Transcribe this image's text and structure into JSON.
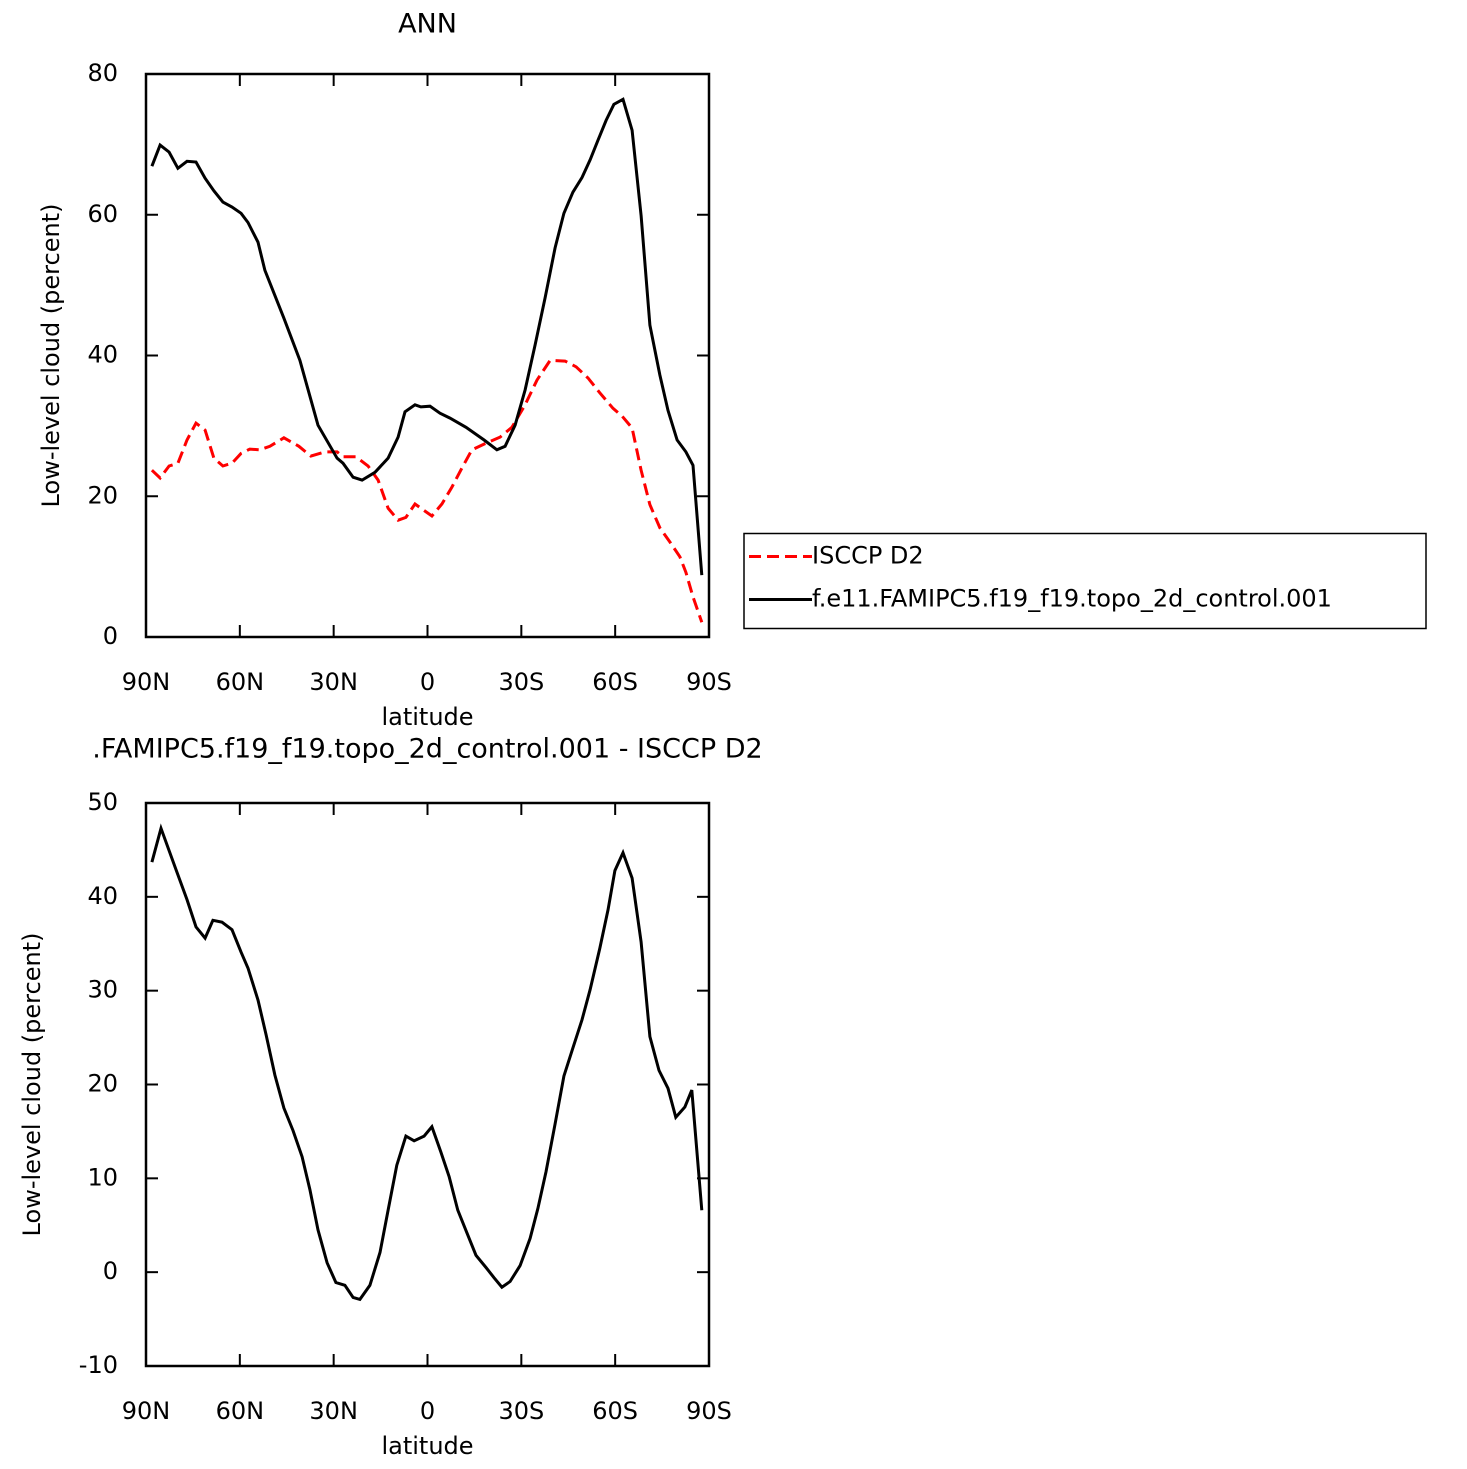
{
  "chart_data": [
    {
      "type": "line",
      "title": "ANN",
      "xlabel": "latitude",
      "ylabel": "Low-level cloud (percent)",
      "xlim": [
        90,
        -90
      ],
      "xticks": [
        {
          "value": 90,
          "label": "90N"
        },
        {
          "value": 60,
          "label": "60N"
        },
        {
          "value": 30,
          "label": "30N"
        },
        0,
        {
          "value": -30,
          "label": "30S"
        },
        {
          "value": -60,
          "label": "60S"
        },
        {
          "value": -90,
          "label": "90S"
        }
      ],
      "ylim": [
        0,
        80
      ],
      "yticks": [
        0,
        20,
        40,
        60,
        80
      ],
      "legend": "right",
      "series": [
        {
          "name": "ISCCP D2",
          "color": "#ff0000",
          "dash": true,
          "x": [
            88.1,
            85.5,
            82.6,
            79.8,
            76.9,
            74.0,
            71.1,
            68.3,
            65.4,
            62.5,
            59.6,
            56.8,
            53.6,
            50.4,
            45.9,
            41.1,
            37.3,
            32.8,
            28.9,
            27.0,
            22.9,
            19.0,
            15.8,
            12.6,
            9.4,
            6.9,
            4.0,
            -1.4,
            -4.6,
            -7.8,
            -11.0,
            -14.2,
            -19.0,
            -23.2,
            -27.0,
            -31.2,
            -35.0,
            -39.2,
            -44.0,
            -47.5,
            -51.3,
            -55.1,
            -59.3,
            -62.2,
            -65.4,
            -68.3,
            -71.1,
            -74.3,
            -77.5,
            -80.7,
            -82.6,
            -84.9,
            -87.7
          ],
          "values": [
            23.7,
            22.6,
            24.3,
            24.7,
            28.0,
            30.4,
            29.4,
            25.4,
            24.3,
            24.7,
            26.1,
            26.7,
            26.6,
            27.1,
            28.3,
            27.1,
            25.7,
            26.3,
            26.3,
            25.6,
            25.6,
            24.3,
            22.3,
            18.3,
            16.6,
            17.0,
            18.9,
            17.2,
            18.9,
            21.3,
            24.0,
            26.6,
            27.6,
            28.4,
            29.8,
            33.0,
            36.5,
            39.3,
            39.2,
            38.4,
            36.8,
            34.7,
            32.5,
            31.4,
            29.7,
            23.7,
            18.8,
            15.5,
            13.5,
            11.4,
            9.2,
            5.7,
            2.1
          ]
        },
        {
          "name": "f.e11.FAMIPC5.f19_f19.topo_2d_control.001",
          "color": "#000000",
          "dash": false,
          "x": [
            88.1,
            85.5,
            82.6,
            79.8,
            76.9,
            74.0,
            71.1,
            68.3,
            65.4,
            62.5,
            59.6,
            57.4,
            54.2,
            52.0,
            45.9,
            40.8,
            35.0,
            28.9,
            27.0,
            23.8,
            20.9,
            16.8,
            12.6,
            9.4,
            7.2,
            4.0,
            2.1,
            -0.8,
            -4.0,
            -7.2,
            -12.3,
            -18.1,
            -22.2,
            -24.8,
            -28.0,
            -31.2,
            -34.4,
            -37.6,
            -40.8,
            -43.6,
            -46.5,
            -49.4,
            -52.0,
            -54.5,
            -57.1,
            -59.6,
            -62.5,
            -65.4,
            -68.3,
            -71.1,
            -74.3,
            -76.9,
            -79.8,
            -82.6,
            -84.9,
            -87.7
          ],
          "values": [
            66.9,
            69.9,
            68.9,
            66.6,
            67.6,
            67.5,
            65.2,
            63.4,
            61.8,
            61.1,
            60.2,
            58.9,
            56.1,
            52.1,
            45.3,
            39.3,
            30.1,
            25.4,
            24.7,
            22.7,
            22.3,
            23.4,
            25.4,
            28.4,
            32.0,
            33.0,
            32.7,
            32.8,
            31.8,
            31.1,
            29.8,
            28.0,
            26.6,
            27.1,
            30.1,
            35.1,
            41.5,
            48.2,
            55.3,
            60.2,
            63.2,
            65.3,
            67.8,
            70.6,
            73.4,
            75.7,
            76.4,
            72.0,
            59.9,
            44.3,
            37.2,
            32.2,
            28.0,
            26.3,
            24.4,
            8.8
          ]
        }
      ]
    },
    {
      "type": "line",
      "title": ".FAMIPC5.f19_f19.topo_2d_control.001 - ISCCP D2",
      "xlabel": "latitude",
      "ylabel": "Low-level cloud (percent)",
      "xlim": [
        90,
        -90
      ],
      "xticks": [
        {
          "value": 90,
          "label": "90N"
        },
        {
          "value": 60,
          "label": "60N"
        },
        {
          "value": 30,
          "label": "30N"
        },
        0,
        {
          "value": -30,
          "label": "30S"
        },
        {
          "value": -60,
          "label": "60S"
        },
        {
          "value": -90,
          "label": "90S"
        }
      ],
      "ylim": [
        -10,
        50
      ],
      "yticks": [
        -10,
        0,
        10,
        20,
        30,
        40,
        50
      ],
      "series": [
        {
          "color": "#000000",
          "dash": false,
          "x": [
            88.1,
            85.2,
            80.4,
            76.9,
            74.0,
            71.1,
            68.6,
            65.7,
            62.5,
            59.6,
            57.4,
            54.2,
            51.6,
            48.8,
            45.9,
            43.0,
            40.1,
            37.6,
            35.0,
            32.1,
            29.3,
            26.4,
            23.8,
            21.6,
            18.4,
            15.2,
            12.6,
            9.8,
            6.9,
            4.3,
            1.1,
            -1.4,
            -4.3,
            -6.9,
            -9.7,
            -12.6,
            -15.5,
            -18.7,
            -21.3,
            -23.8,
            -26.4,
            -29.6,
            -32.8,
            -35.3,
            -37.9,
            -40.8,
            -43.6,
            -46.5,
            -49.4,
            -52.0,
            -55.1,
            -57.7,
            -59.9,
            -62.5,
            -65.4,
            -68.3,
            -71.1,
            -74.0,
            -76.9,
            -79.4,
            -82.3,
            -84.5,
            -87.7
          ],
          "values": [
            43.7,
            47.3,
            42.9,
            39.7,
            36.8,
            35.6,
            37.5,
            37.3,
            36.5,
            34.1,
            32.4,
            29.0,
            25.3,
            21.0,
            17.5,
            15.1,
            12.3,
            8.8,
            4.5,
            1.0,
            -1.1,
            -1.4,
            -2.7,
            -2.9,
            -1.4,
            2.1,
            6.6,
            11.4,
            14.5,
            14.0,
            14.5,
            15.5,
            12.8,
            10.2,
            6.6,
            4.2,
            1.8,
            0.5,
            -0.6,
            -1.6,
            -1.0,
            0.7,
            3.6,
            6.8,
            10.7,
            15.8,
            20.9,
            23.9,
            26.9,
            30.1,
            34.5,
            38.6,
            42.8,
            44.7,
            42.0,
            35.2,
            25.1,
            21.5,
            19.6,
            16.5,
            17.6,
            19.4,
            6.6
          ]
        }
      ]
    }
  ]
}
